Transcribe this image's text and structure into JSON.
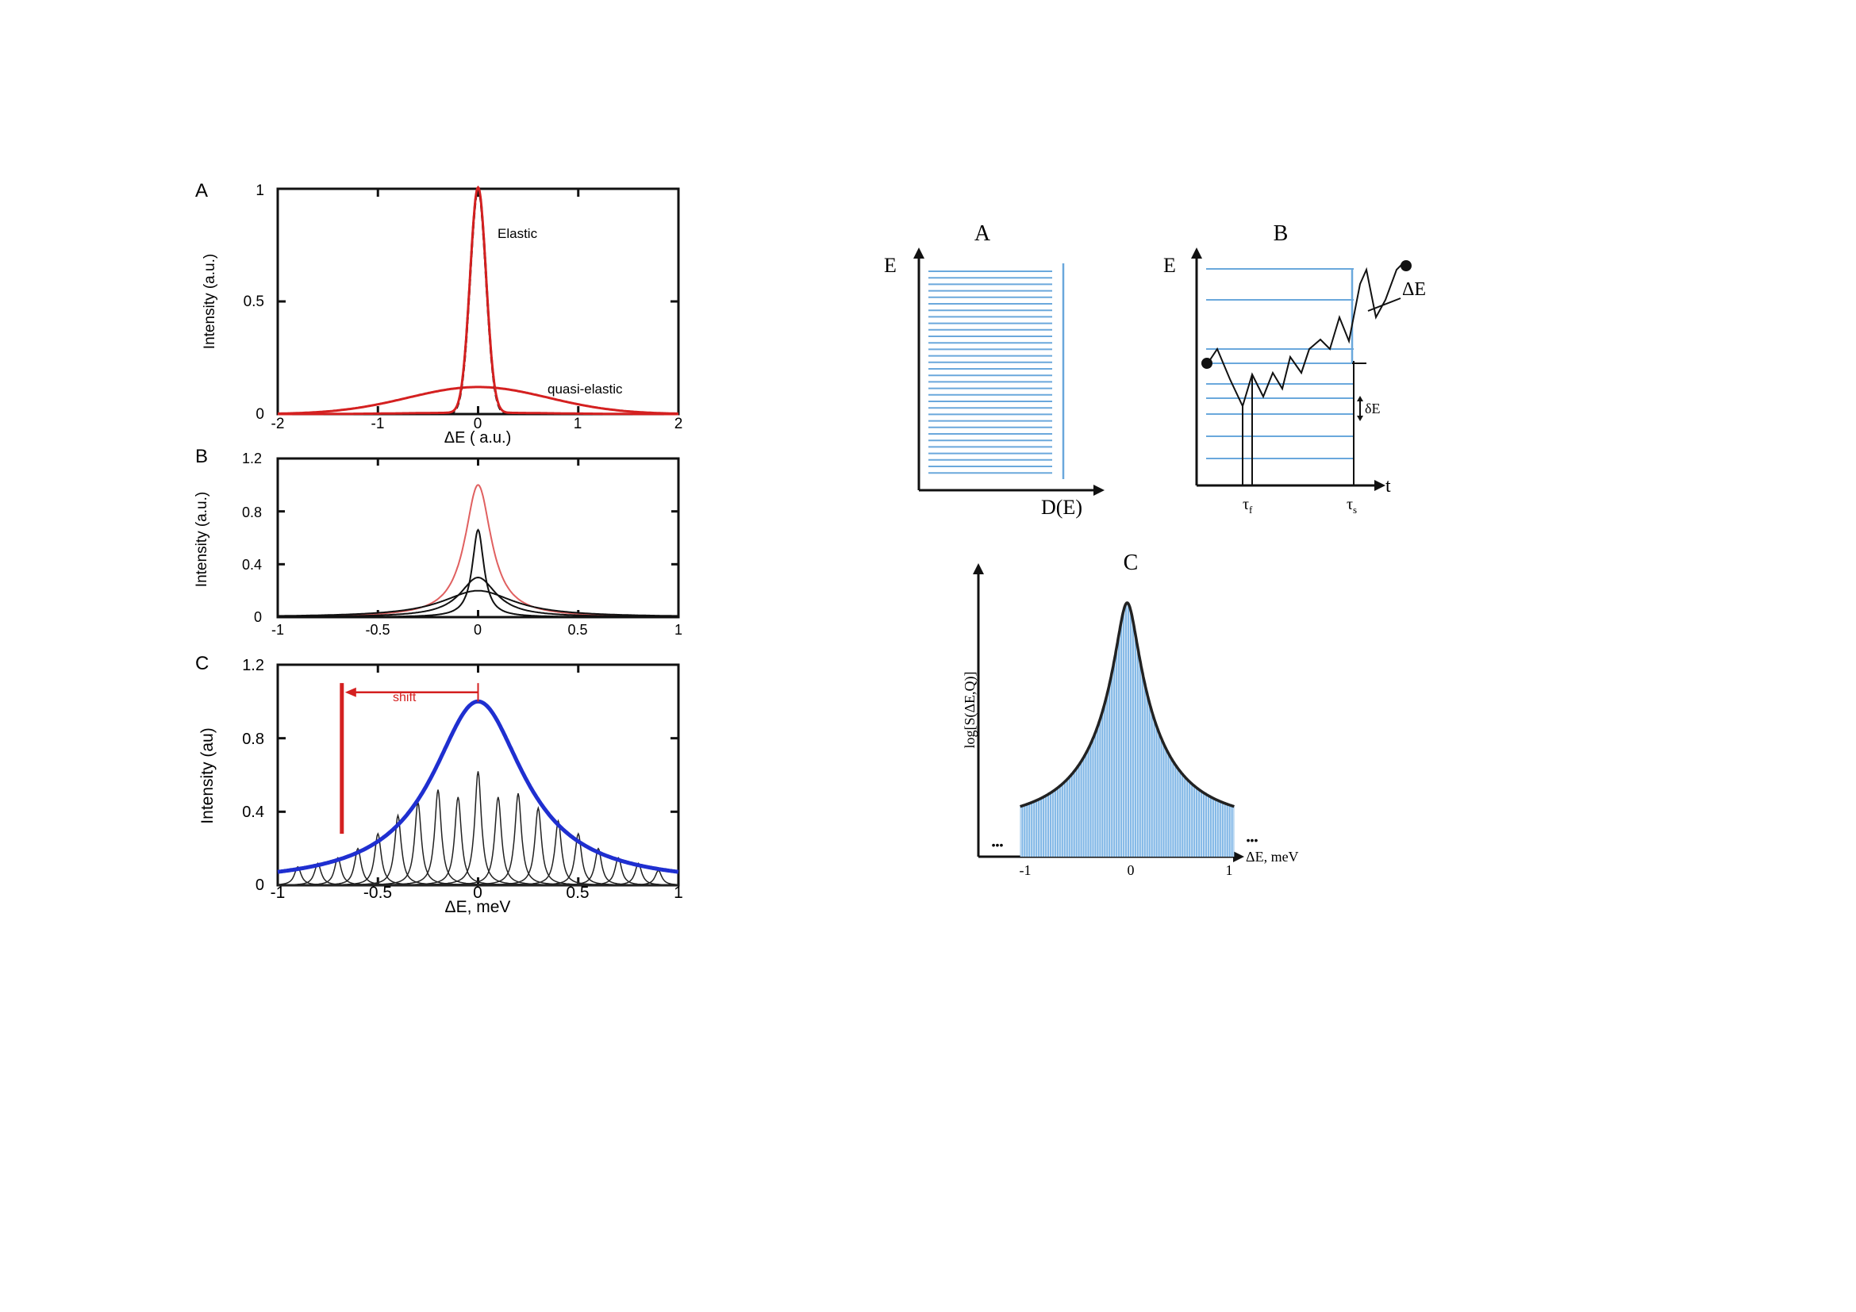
{
  "left_panel": {
    "A": {
      "label": "A",
      "ylabel": "Intensity (a.u.)",
      "xlabel": "ΔE ( a.u.)",
      "xticks": [
        "-2",
        "-1",
        "0",
        "1",
        "2"
      ],
      "yticks": [
        "0",
        "0.5",
        "1"
      ],
      "annotations": [
        "Elastic",
        "quasi-elastic"
      ]
    },
    "B": {
      "label": "B",
      "ylabel": "Intensity (a.u.)",
      "xticks": [
        "-1",
        "-0.5",
        "0",
        "0.5",
        "1"
      ],
      "yticks": [
        "0",
        "0.4",
        "0.8",
        "1.2"
      ]
    },
    "C": {
      "label": "C",
      "ylabel": "Intensity (au)",
      "xlabel": "ΔE, meV",
      "xticks": [
        "-1",
        "-0.5",
        "0",
        "0.5",
        "1"
      ],
      "yticks": [
        "0",
        "0.4",
        "0.8",
        "1.2"
      ],
      "annotation": "shift"
    }
  },
  "right_panel": {
    "A": {
      "label": "A",
      "ylabel": "E",
      "xlabel": "D(E)"
    },
    "B": {
      "label": "B",
      "ylabel": "E",
      "xlabel": "t",
      "delta_E": "ΔE",
      "delta_small": "δE",
      "tau_f": "τ",
      "tau_f_sub": "f",
      "tau_s": "τ",
      "tau_s_sub": "s"
    },
    "C": {
      "label": "C",
      "ylabel": "log[S(ΔE,Q)]",
      "xlabel": "ΔE, meV",
      "xticks": [
        "-1",
        "0",
        "1"
      ],
      "dots_left": "•••",
      "dots_right": "•••"
    }
  },
  "colors": {
    "red": "#d42020",
    "blue": "#1f2fd0",
    "light_blue": "#6aa8dc",
    "black": "#111111"
  },
  "chart_data": [
    {
      "panel": "left-A",
      "type": "line",
      "xlabel": "ΔE ( a.u.)",
      "ylabel": "Intensity (a.u.)",
      "xlim": [
        -2,
        2
      ],
      "ylim": [
        0,
        1
      ],
      "series": [
        {
          "name": "Elastic",
          "shape": "gaussian",
          "center": 0,
          "height": 1.0,
          "sigma": 0.08
        },
        {
          "name": "quasi-elastic",
          "shape": "gaussian",
          "center": 0,
          "height": 0.12,
          "sigma": 0.7
        }
      ]
    },
    {
      "panel": "left-B",
      "type": "line",
      "xlabel": "",
      "ylabel": "Intensity (a.u.)",
      "xlim": [
        -1,
        1
      ],
      "ylim": [
        0,
        1.2
      ],
      "series": [
        {
          "shape": "lorentzian",
          "center": 0,
          "height": 1.0,
          "gamma": 0.08
        },
        {
          "shape": "lorentzian",
          "center": 0,
          "height": 0.66,
          "gamma": 0.035
        },
        {
          "shape": "lorentzian",
          "center": 0,
          "height": 0.3,
          "gamma": 0.11
        },
        {
          "shape": "lorentzian",
          "center": 0,
          "height": 0.2,
          "gamma": 0.22
        }
      ]
    },
    {
      "panel": "left-C",
      "type": "line",
      "xlabel": "ΔE, meV",
      "ylabel": "Intensity (au)",
      "xlim": [
        -1,
        1
      ],
      "ylim": [
        0,
        1.2
      ],
      "envelope": {
        "shape": "lorentzian",
        "center": 0,
        "height": 1.0,
        "gamma": 0.28
      },
      "peaks": {
        "width": 0.02,
        "centers": [
          -0.9,
          -0.8,
          -0.7,
          -0.6,
          -0.5,
          -0.4,
          -0.3,
          -0.2,
          -0.1,
          0,
          0.1,
          0.2,
          0.3,
          0.4,
          0.5,
          0.6,
          0.7,
          0.8,
          0.9
        ],
        "heights": [
          0.1,
          0.12,
          0.15,
          0.2,
          0.28,
          0.38,
          0.45,
          0.52,
          0.48,
          0.62,
          0.48,
          0.5,
          0.42,
          0.35,
          0.28,
          0.2,
          0.15,
          0.12,
          0.08
        ]
      },
      "shift_marker": {
        "from": 0,
        "to": -0.68,
        "line_top": 1.1,
        "line_bottom": 0.28
      }
    },
    {
      "panel": "right-C",
      "type": "area",
      "xlabel": "ΔE, meV",
      "ylabel": "log[S(ΔE,Q)]",
      "xlim": [
        -1,
        1
      ],
      "envelope": {
        "shape": "lorentzian",
        "center": 0,
        "gamma": 0.09,
        "base": 0.12,
        "peak": 1.0
      }
    }
  ]
}
